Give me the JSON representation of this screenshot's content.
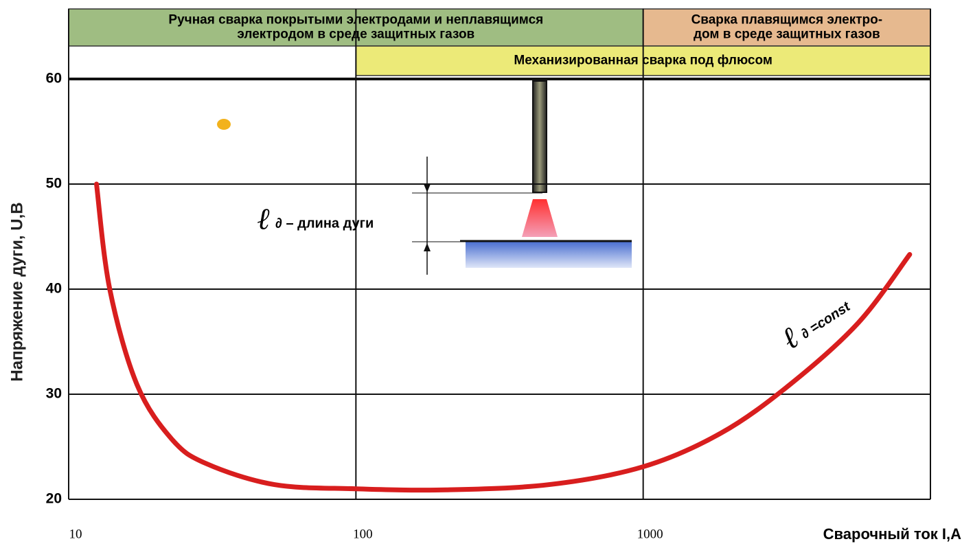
{
  "chart_data": {
    "type": "line",
    "xlabel": "Сварочный ток I,А",
    "ylabel": "Напряжение дуги, U,В",
    "xscale": "log",
    "xlim": [
      10,
      10000
    ],
    "xticks": [
      10,
      100,
      1000
    ],
    "ylim": [
      20,
      60
    ],
    "yticks": [
      20,
      30,
      40,
      50,
      60
    ],
    "grid": true,
    "line_color": "#d81e1e",
    "x": [
      12.5,
      13.9,
      17.3,
      22.9,
      30.1,
      52,
      100,
      206,
      471,
      1000,
      1866,
      3236,
      5610,
      8470
    ],
    "values": [
      50,
      40,
      30.9,
      25.7,
      23.4,
      21.4,
      21,
      20.9,
      21.4,
      23.1,
      26.3,
      30.9,
      36.8,
      43.3
    ],
    "bands": [
      {
        "lines": [
          "Ручная сварка покрытыми электродами и неплавящимся",
          "электродом в среде защитных газов"
        ],
        "from": 10,
        "to": 1000,
        "color": "#9fbd82",
        "row": 0
      },
      {
        "lines": [
          "Сварка плавящимся электро-",
          "дом в среде защитных газов"
        ],
        "from": 1000,
        "to": 10000,
        "color": "#e6b98f",
        "row": 0
      },
      {
        "lines": [
          "Механизированная сварка под флюсом"
        ],
        "from": 100,
        "to": 10000,
        "color": "#ecea78",
        "row": 1
      }
    ],
    "annotations": [
      {
        "symbol": "ℓ",
        "text": "∂ – длина дуги"
      },
      {
        "symbol": "ℓ",
        "text": "∂ =const"
      }
    ]
  }
}
